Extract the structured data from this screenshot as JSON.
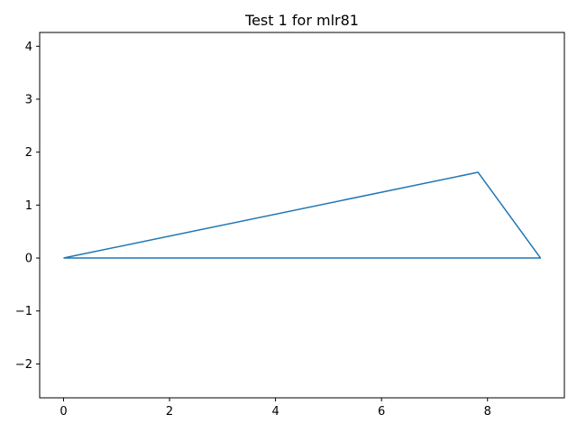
{
  "chart_data": {
    "type": "line",
    "title": "Test 1 for mlr81",
    "xlabel": "",
    "ylabel": "",
    "xlim": [
      -0.45,
      9.45
    ],
    "ylim": [
      -2.64,
      4.26
    ],
    "xticks": [
      0,
      2,
      4,
      6,
      8
    ],
    "yticks": [
      -2,
      -1,
      0,
      1,
      2,
      3,
      4
    ],
    "grid": false,
    "series": [
      {
        "color": "#1f77b4",
        "x": [
          0,
          7.82,
          9.0,
          0
        ],
        "y": [
          0,
          1.62,
          0,
          0
        ]
      }
    ]
  }
}
